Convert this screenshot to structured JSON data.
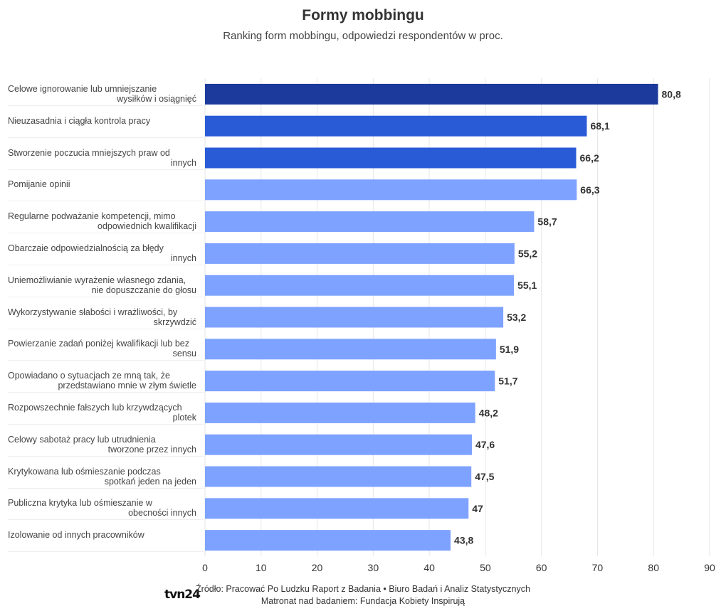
{
  "chart_data": {
    "type": "bar",
    "orientation": "horizontal",
    "title": "Formy mobbingu",
    "subtitle": "Ranking form mobbingu, odpowiedzi respondentów w proc.",
    "categories": [
      [
        "Celowe ignorowanie lub umniejszanie",
        "wysiłków i osiągnięć"
      ],
      [
        "Nieuzasadnia i ciągła kontrola pracy",
        ""
      ],
      [
        "Stworzenie poczucia mniejszych praw od",
        "innych"
      ],
      [
        "Pomijanie opinii",
        ""
      ],
      [
        "Regularne podważanie kompetencji, mimo",
        "odpowiednich kwalifikacji"
      ],
      [
        "Obarczaie odpowiedzialnością za błędy",
        "innych"
      ],
      [
        "Uniemożliwianie wyrażenie własnego zdania,",
        "nie dopuszczanie do głosu"
      ],
      [
        "Wykorzystywanie słabości i wrażliwości, by",
        "skrzywdzić"
      ],
      [
        "Powierzanie zadań poniżej kwalifikacji lub bez",
        "sensu"
      ],
      [
        "Opowiadano o sytuacjach ze mną tak, że",
        "przedstawiano mnie w złym świetle"
      ],
      [
        "Rozpowszechnie fałszych lub krzywdzących",
        "plotek"
      ],
      [
        "Celowy sabotaż pracy lub utrudnienia",
        "tworzone przez innych"
      ],
      [
        "Krytykowana lub ośmieszanie podczas",
        "spotkań jeden na jeden"
      ],
      [
        "Publiczna krytyka lub ośmieszanie w",
        "obecności innych"
      ],
      [
        "Izolowanie od innych pracowników",
        ""
      ]
    ],
    "values": [
      80.8,
      68.1,
      66.2,
      66.3,
      58.7,
      55.2,
      55.1,
      53.2,
      51.9,
      51.7,
      48.2,
      47.6,
      47.5,
      47,
      43.8
    ],
    "value_labels": [
      "80,8",
      "68,1",
      "66,2",
      "66,3",
      "58,7",
      "55,2",
      "55,1",
      "53,2",
      "51,9",
      "51,7",
      "48,2",
      "47,6",
      "47,5",
      "47",
      "43,8"
    ],
    "bar_colors": [
      "#1b3a9c",
      "#2a5bd7",
      "#2a5bd7",
      "#7ea2ff",
      "#7ea2ff",
      "#7ea2ff",
      "#7ea2ff",
      "#7ea2ff",
      "#7ea2ff",
      "#7ea2ff",
      "#7ea2ff",
      "#7ea2ff",
      "#7ea2ff",
      "#7ea2ff",
      "#7ea2ff"
    ],
    "xlim": [
      0,
      90
    ],
    "xticks": [
      0,
      10,
      20,
      30,
      40,
      50,
      60,
      70,
      80,
      90
    ],
    "grid": true,
    "xlabel": "",
    "ylabel": ""
  },
  "footer": {
    "source": "Źródło: Pracować Po Ludzku Raport z Badania • Biuro Badań i Analiz Statystycznych",
    "patron": "Matronat nad badaniem: Fundacja Kobiety Inspirują",
    "logo": "tvn24"
  },
  "colors": {
    "grid": "#e6e6e6",
    "axis_text": "#333333",
    "value_text": "#333333"
  }
}
